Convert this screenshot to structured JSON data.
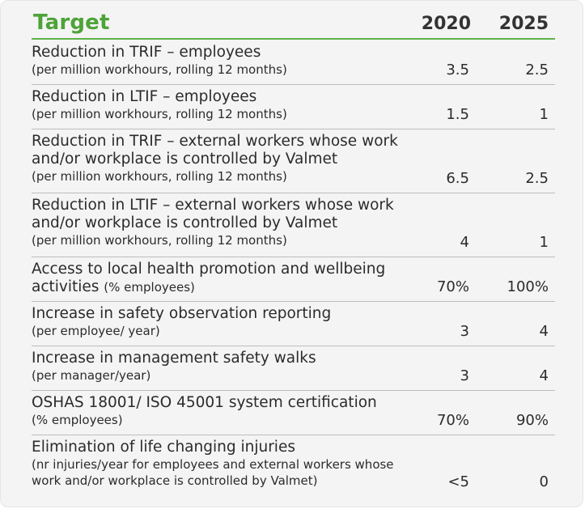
{
  "header": {
    "target_label": "Target",
    "year1": "2020",
    "year2": "2025"
  },
  "rows": [
    {
      "title": "Reduction in TRIF – employees",
      "inline_sub": "",
      "sub": "(per million workhours, rolling 12 months)",
      "v2020": "3.5",
      "v2025": "2.5"
    },
    {
      "title": "Reduction in LTIF – employees",
      "inline_sub": "",
      "sub": "(per million workhours, rolling 12 months)",
      "v2020": "1.5",
      "v2025": "1"
    },
    {
      "title": "Reduction in TRIF – external workers whose work and/or workplace is controlled by Valmet",
      "inline_sub": "",
      "sub": "(per million workhours, rolling 12 months)",
      "v2020": "6.5",
      "v2025": "2.5"
    },
    {
      "title": "Reduction in LTIF –  external workers whose work and/or workplace is controlled by Valmet",
      "inline_sub": "",
      "sub": "(per million workhours, rolling 12 months)",
      "v2020": "4",
      "v2025": "1"
    },
    {
      "title": "Access to local health promotion and wellbeing activities",
      "inline_sub": "(% employees)",
      "sub": "",
      "v2020": "70%",
      "v2025": "100%"
    },
    {
      "title": "Increase in safety observation reporting",
      "inline_sub": "",
      "sub": "(per employee/ year)",
      "v2020": "3",
      "v2025": "4"
    },
    {
      "title": "Increase in management safety walks",
      "inline_sub": "",
      "sub": "(per manager/year)",
      "v2020": "3",
      "v2025": "4"
    },
    {
      "title": "OSHAS 18001/ ISO 45001 system certification",
      "inline_sub": "",
      "sub": "(% employees)",
      "v2020": "70%",
      "v2025": "90%"
    },
    {
      "title": "Elimination of life changing injuries",
      "inline_sub": "",
      "sub": "(nr injuries/year for employees and external workers whose work and/or workplace is controlled by Valmet)",
      "v2020": "<5",
      "v2025": "0"
    }
  ]
}
